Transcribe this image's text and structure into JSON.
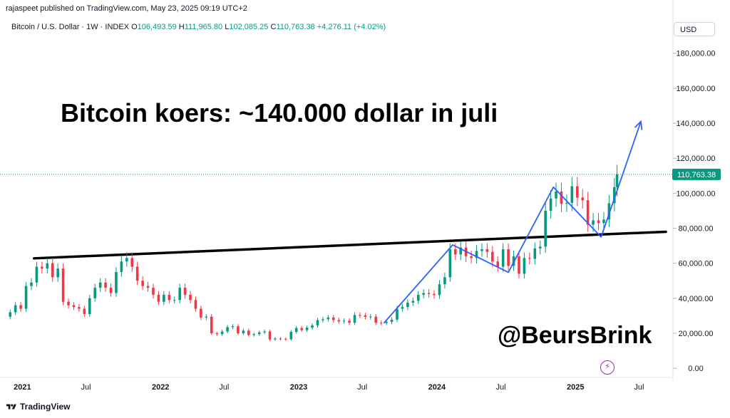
{
  "publisher": "rajaspeet published on TradingView.com, May 23, 2025 09:19 UTC+2",
  "header": {
    "symbol": "Bitcoin / U.S. Dollar · 1W · INDEX",
    "open_label": "O",
    "open": "106,493.59",
    "high_label": "H",
    "high": "111,965.80",
    "low_label": "L",
    "low": "102,085.25",
    "close_label": "C",
    "close": "110,763.38",
    "change": "+4,276.11 (+4.02%)"
  },
  "currency": "USD",
  "footer_brand": "TradingView",
  "overlay_title": "Bitcoin koers: ~140.000 dollar in juli",
  "watermark": "@BeursBrink",
  "chart_data": {
    "type": "line",
    "style": "candlestick",
    "colors": {
      "up": "#089981",
      "down": "#f23645",
      "trendline": "#000000",
      "projection": "#2962ff",
      "last_price_bg": "#089981"
    },
    "y_ticks": [
      "0.00",
      "20,000.00",
      "40,000.00",
      "60,000.00",
      "80,000.00",
      "100,000.00",
      "120,000.00",
      "140,000.00",
      "160,000.00",
      "180,000.00"
    ],
    "y_tick_values": [
      0,
      20000,
      40000,
      60000,
      80000,
      100000,
      120000,
      140000,
      160000,
      180000
    ],
    "ylim": [
      -4000,
      186000
    ],
    "x_ticks": [
      "2021",
      "Jul",
      "2022",
      "Jul",
      "2023",
      "Jul",
      "2024",
      "Jul",
      "2025",
      "Jul"
    ],
    "x_tick_dates": [
      "2021-01-01",
      "2021-07-01",
      "2022-01-01",
      "2022-07-01",
      "2023-01-01",
      "2023-07-01",
      "2024-01-01",
      "2024-07-01",
      "2025-01-01",
      "2025-07-01"
    ],
    "xlim": [
      "2020-12-20",
      "2025-10-10"
    ],
    "last_price_label": "110,763.38",
    "last_price": 110763.38,
    "weekly_close": [
      [
        "2020-12-28",
        32000
      ],
      [
        "2021-01-11",
        36000
      ],
      [
        "2021-01-25",
        34000
      ],
      [
        "2021-02-08",
        47000
      ],
      [
        "2021-02-22",
        49000
      ],
      [
        "2021-03-08",
        58000
      ],
      [
        "2021-03-22",
        57000
      ],
      [
        "2021-04-05",
        60000
      ],
      [
        "2021-04-19",
        52000
      ],
      [
        "2021-05-03",
        57000
      ],
      [
        "2021-05-17",
        38000
      ],
      [
        "2021-05-31",
        36000
      ],
      [
        "2021-06-14",
        35000
      ],
      [
        "2021-06-28",
        34000
      ],
      [
        "2021-07-12",
        31000
      ],
      [
        "2021-07-26",
        40000
      ],
      [
        "2021-08-09",
        46000
      ],
      [
        "2021-08-23",
        49000
      ],
      [
        "2021-09-06",
        46000
      ],
      [
        "2021-09-20",
        43000
      ],
      [
        "2021-10-04",
        55000
      ],
      [
        "2021-10-18",
        61000
      ],
      [
        "2021-11-01",
        63000
      ],
      [
        "2021-11-15",
        58000
      ],
      [
        "2021-11-29",
        50000
      ],
      [
        "2021-12-13",
        47000
      ],
      [
        "2021-12-27",
        46000
      ],
      [
        "2022-01-10",
        42000
      ],
      [
        "2022-01-24",
        38000
      ],
      [
        "2022-02-07",
        42000
      ],
      [
        "2022-02-21",
        39000
      ],
      [
        "2022-03-07",
        39000
      ],
      [
        "2022-03-21",
        46000
      ],
      [
        "2022-04-04",
        42000
      ],
      [
        "2022-04-18",
        39000
      ],
      [
        "2022-05-02",
        34000
      ],
      [
        "2022-05-16",
        29000
      ],
      [
        "2022-05-30",
        29500
      ],
      [
        "2022-06-13",
        20000
      ],
      [
        "2022-06-27",
        19500
      ],
      [
        "2022-07-11",
        21000
      ],
      [
        "2022-07-25",
        23500
      ],
      [
        "2022-08-08",
        24000
      ],
      [
        "2022-08-22",
        20000
      ],
      [
        "2022-09-05",
        21500
      ],
      [
        "2022-09-19",
        19000
      ],
      [
        "2022-10-03",
        19500
      ],
      [
        "2022-10-17",
        20500
      ],
      [
        "2022-10-31",
        21000
      ],
      [
        "2022-11-14",
        16500
      ],
      [
        "2022-11-28",
        17000
      ],
      [
        "2022-12-12",
        16800
      ],
      [
        "2022-12-26",
        16600
      ],
      [
        "2023-01-09",
        20800
      ],
      [
        "2023-01-23",
        23000
      ],
      [
        "2023-02-06",
        21800
      ],
      [
        "2023-02-20",
        23200
      ],
      [
        "2023-03-06",
        24500
      ],
      [
        "2023-03-20",
        27500
      ],
      [
        "2023-04-03",
        28000
      ],
      [
        "2023-04-17",
        29000
      ],
      [
        "2023-05-01",
        27500
      ],
      [
        "2023-05-15",
        26800
      ],
      [
        "2023-05-29",
        27200
      ],
      [
        "2023-06-12",
        26000
      ],
      [
        "2023-06-26",
        30400
      ],
      [
        "2023-07-10",
        30200
      ],
      [
        "2023-07-24",
        29300
      ],
      [
        "2023-08-07",
        29500
      ],
      [
        "2023-08-21",
        26000
      ],
      [
        "2023-09-04",
        25900
      ],
      [
        "2023-09-18",
        26500
      ],
      [
        "2023-10-02",
        27800
      ],
      [
        "2023-10-16",
        34000
      ],
      [
        "2023-10-30",
        35000
      ],
      [
        "2023-11-13",
        37500
      ],
      [
        "2023-11-27",
        38500
      ],
      [
        "2023-12-11",
        42000
      ],
      [
        "2023-12-25",
        43000
      ],
      [
        "2024-01-08",
        42500
      ],
      [
        "2024-01-22",
        41800
      ],
      [
        "2024-02-05",
        48000
      ],
      [
        "2024-02-19",
        52000
      ],
      [
        "2024-03-04",
        68000
      ],
      [
        "2024-03-18",
        65000
      ],
      [
        "2024-04-01",
        69000
      ],
      [
        "2024-04-15",
        64000
      ],
      [
        "2024-04-29",
        63000
      ],
      [
        "2024-05-13",
        67000
      ],
      [
        "2024-05-27",
        68000
      ],
      [
        "2024-06-10",
        66500
      ],
      [
        "2024-06-24",
        61000
      ],
      [
        "2024-07-08",
        58000
      ],
      [
        "2024-07-22",
        68000
      ],
      [
        "2024-08-05",
        58500
      ],
      [
        "2024-08-19",
        64000
      ],
      [
        "2024-09-02",
        54000
      ],
      [
        "2024-09-16",
        63000
      ],
      [
        "2024-09-30",
        62500
      ],
      [
        "2024-10-14",
        68500
      ],
      [
        "2024-10-28",
        69500
      ],
      [
        "2024-11-11",
        90000
      ],
      [
        "2024-11-25",
        97000
      ],
      [
        "2024-12-09",
        101000
      ],
      [
        "2024-12-23",
        94000
      ],
      [
        "2025-01-06",
        94500
      ],
      [
        "2025-01-20",
        104000
      ],
      [
        "2025-02-03",
        97500
      ],
      [
        "2025-02-17",
        96000
      ],
      [
        "2025-03-03",
        82000
      ],
      [
        "2025-03-17",
        84500
      ],
      [
        "2025-03-31",
        83000
      ],
      [
        "2025-04-14",
        85000
      ],
      [
        "2025-04-28",
        94300
      ],
      [
        "2025-05-12",
        103500
      ],
      [
        "2025-05-19",
        110763
      ]
    ],
    "trendline": [
      [
        "2021-03-01",
        62800
      ],
      [
        "2025-09-25",
        78000
      ]
    ],
    "projection": [
      [
        "2023-09-11",
        25800
      ],
      [
        "2024-03-11",
        70500
      ],
      [
        "2024-08-05",
        54800
      ],
      [
        "2024-12-02",
        103500
      ],
      [
        "2025-04-07",
        75000
      ],
      [
        "2025-07-21",
        141000
      ]
    ]
  }
}
